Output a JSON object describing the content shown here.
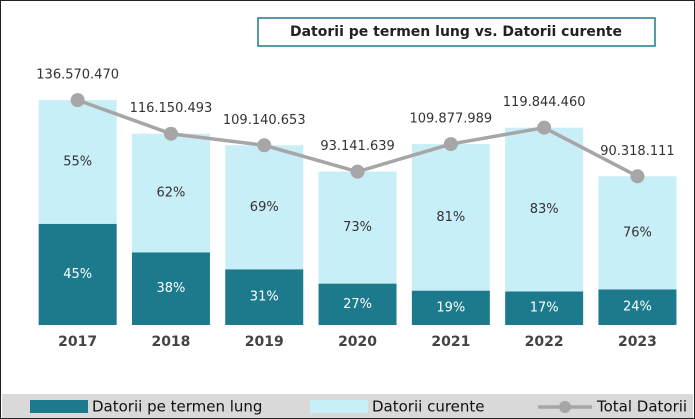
{
  "chart_data": {
    "type": "bar",
    "stacked": true,
    "title": "Datorii pe termen lung vs. Datorii curente",
    "categories": [
      "2017",
      "2018",
      "2019",
      "2020",
      "2021",
      "2022",
      "2023"
    ],
    "series": [
      {
        "name": "Datorii pe termen lung",
        "color": "#1c7a8c",
        "values": [
          45,
          38,
          31,
          27,
          19,
          17,
          24
        ],
        "value_labels": [
          "45%",
          "38%",
          "31%",
          "27%",
          "19%",
          "17%",
          "24%"
        ]
      },
      {
        "name": "Datorii curente",
        "color": "#c8eef8",
        "values": [
          55,
          62,
          69,
          73,
          81,
          83,
          76
        ],
        "value_labels": [
          "55%",
          "62%",
          "69%",
          "73%",
          "81%",
          "83%",
          "76%"
        ]
      }
    ],
    "line": {
      "name": "Total Datorii",
      "color": "#a6a6a6",
      "values": [
        136570470,
        116150493,
        109140653,
        93141639,
        109877989,
        119844460,
        90318111
      ],
      "value_labels": [
        "136.570.470",
        "116.150.493",
        "109.140.653",
        "93.141.639",
        "109.877.989",
        "119.844.460",
        "90.318.111"
      ]
    },
    "ylim": [
      0,
      150000000
    ],
    "legend": "bottom"
  }
}
